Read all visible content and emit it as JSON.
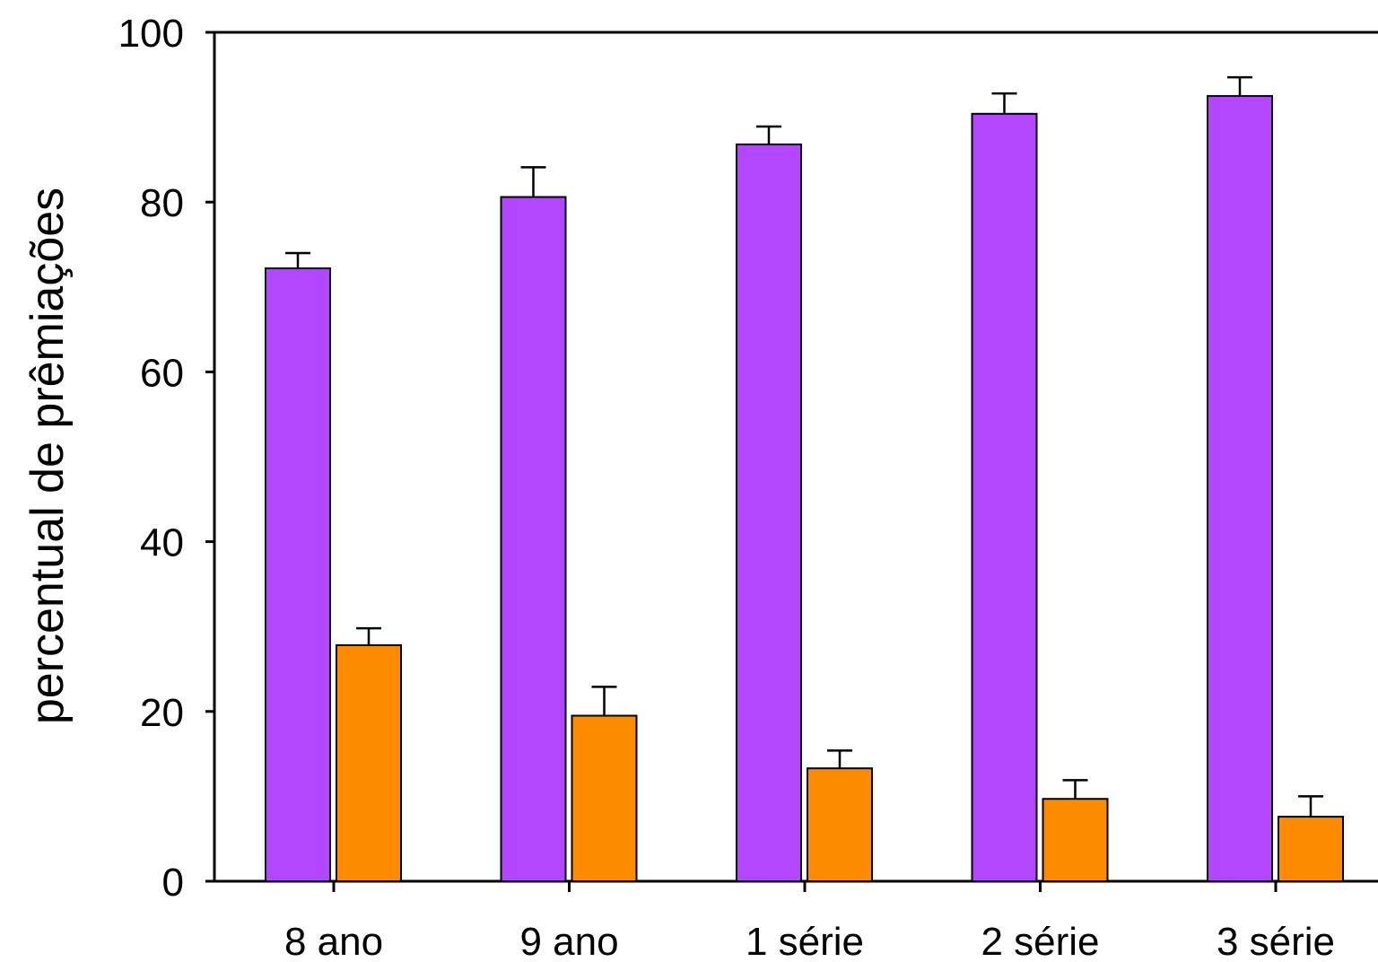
{
  "chart_data": {
    "type": "bar",
    "title": "",
    "xlabel": "",
    "ylabel": "percentual de prêmiações",
    "ylim": [
      0,
      100
    ],
    "yticks": [
      "0",
      "20",
      "40",
      "60",
      "80",
      "100"
    ],
    "categories": [
      "8 ano",
      "9 ano",
      "1 série",
      "2 série",
      "3 série"
    ],
    "series": [
      {
        "color": "#b347ff",
        "values": [
          72.2,
          80.6,
          86.8,
          90.4,
          92.5
        ],
        "errors": [
          1.8,
          3.5,
          2.1,
          2.4,
          2.2
        ]
      },
      {
        "color": "#ff8c00",
        "values": [
          27.8,
          19.5,
          13.3,
          9.7,
          7.6
        ],
        "errors": [
          2.0,
          3.4,
          2.1,
          2.2,
          2.4
        ]
      }
    ],
    "grid": false,
    "legend": "none"
  }
}
